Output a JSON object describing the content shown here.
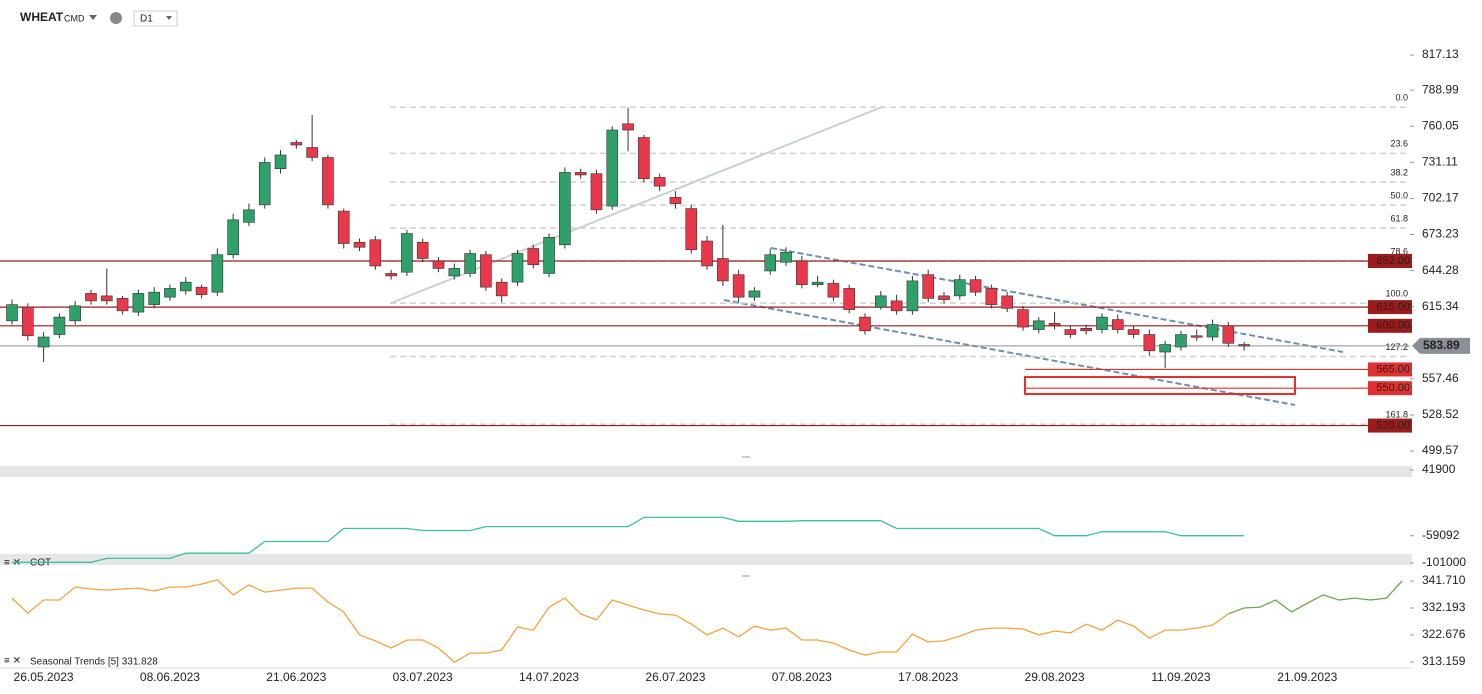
{
  "chart_data": [
    {
      "type": "candlestick",
      "title": "WHEAT",
      "subtitle": "CMD",
      "timeframe": "D1",
      "up_color": "#2ea06a",
      "down_color": "#e8394a",
      "categories": [
        null,
        null,
        "26.05.2023",
        null,
        null,
        null,
        null,
        null,
        null,
        null,
        "08.06.2023",
        null,
        null,
        null,
        null,
        null,
        null,
        null,
        "21.06.2023",
        null,
        null,
        null,
        null,
        null,
        null,
        null,
        "03.07.2023",
        null,
        null,
        null,
        null,
        null,
        null,
        null,
        "14.07.2023",
        null,
        null,
        null,
        null,
        null,
        null,
        null,
        "26.07.2023",
        null,
        null,
        null,
        null,
        null,
        null,
        null,
        "07.08.2023",
        null,
        null,
        null,
        null,
        null,
        null,
        null,
        "17.08.2023",
        null,
        null,
        null,
        null,
        null,
        null,
        null,
        "29.08.2023",
        null,
        null,
        null,
        null,
        null,
        null,
        null,
        "11.09.2023",
        null,
        null,
        null,
        null,
        null,
        null,
        null,
        "21.09.2023",
        null,
        null,
        null,
        null,
        null,
        null
      ],
      "open": [
        604,
        615,
        583,
        593,
        604,
        626,
        624,
        622,
        611,
        617,
        623,
        628,
        631,
        627,
        657,
        683,
        697,
        726,
        747,
        743,
        735,
        692,
        667,
        669,
        642,
        643,
        667,
        652,
        640,
        642,
        657,
        635,
        635,
        662,
        642,
        665,
        723,
        722,
        696,
        762,
        751,
        719,
        703,
        694,
        668,
        654,
        641,
        623,
        644,
        651,
        652,
        633,
        634,
        630,
        607,
        615,
        620,
        612,
        641,
        624,
        624,
        637,
        630,
        624,
        613,
        597,
        602,
        597,
        598,
        597,
        605,
        597,
        593,
        579,
        583,
        592,
        591,
        600,
        585,
        null,
        null,
        null,
        null,
        null,
        null,
        null,
        null,
        null,
        null
      ],
      "high": [
        621,
        618,
        595,
        610,
        620,
        629,
        646,
        624,
        629,
        631,
        633,
        639,
        633,
        662,
        690,
        698,
        735,
        741,
        749,
        769,
        737,
        694,
        670,
        672,
        645,
        677,
        670,
        655,
        650,
        661,
        660,
        638,
        661,
        665,
        674,
        727,
        726,
        725,
        760,
        775,
        753,
        722,
        708,
        697,
        672,
        681,
        645,
        631,
        662,
        663,
        656,
        640,
        637,
        633,
        610,
        628,
        625,
        640,
        645,
        627,
        641,
        640,
        633,
        627,
        616,
        607,
        611,
        600,
        601,
        610,
        609,
        600,
        597,
        588,
        596,
        597,
        605,
        603,
        587,
        null,
        null,
        null,
        null,
        null,
        null,
        null,
        null,
        null,
        null
      ],
      "low": [
        601,
        588,
        571,
        590,
        601,
        617,
        617,
        609,
        608,
        614,
        620,
        625,
        622,
        624,
        654,
        680,
        694,
        722,
        742,
        732,
        694,
        662,
        660,
        645,
        637,
        640,
        651,
        643,
        637,
        639,
        628,
        619,
        632,
        646,
        639,
        662,
        718,
        690,
        693,
        740,
        715,
        708,
        694,
        658,
        645,
        632,
        619,
        620,
        641,
        648,
        630,
        631,
        620,
        610,
        593,
        613,
        609,
        609,
        619,
        618,
        621,
        624,
        614,
        611,
        596,
        594,
        597,
        590,
        593,
        594,
        594,
        590,
        576,
        566,
        580,
        588,
        588,
        583,
        580,
        null,
        null,
        null,
        null,
        null,
        null,
        null,
        null,
        null,
        null
      ],
      "close": [
        617,
        592,
        591,
        607,
        616,
        620,
        620,
        612,
        626,
        627,
        630,
        635,
        625,
        657,
        685,
        693,
        731,
        737,
        745,
        735,
        697,
        666,
        663,
        648,
        640,
        674,
        654,
        646,
        646,
        658,
        631,
        624,
        658,
        649,
        671,
        723,
        721,
        693,
        757,
        757,
        718,
        712,
        698,
        661,
        648,
        636,
        623,
        628,
        657,
        659,
        633,
        635,
        623,
        613,
        596,
        624,
        612,
        636,
        622,
        621,
        637,
        627,
        617,
        614,
        599,
        604,
        600,
        593,
        596,
        607,
        597,
        593,
        580,
        585,
        593,
        591,
        601,
        586,
        583.89,
        null,
        null,
        null,
        null,
        null,
        null,
        null,
        null,
        null,
        null
      ],
      "ylim": [
        494,
        829.2
      ],
      "yticks": [
        817.13,
        788.99,
        760.05,
        731.11,
        702.17,
        673.23,
        644.28,
        615.34,
        557.46,
        528.52,
        499.57
      ],
      "levels": [
        {
          "value": 652,
          "label": "652.00",
          "color": "#9b1c1c"
        },
        {
          "value": 615,
          "label": "615.00",
          "color": "#9b1c1c"
        },
        {
          "value": 600,
          "label": "600.00",
          "color": "#9b1c1c"
        },
        {
          "value": 565,
          "label": "565.00",
          "color": "#e03030",
          "style": "zone"
        },
        {
          "value": 550,
          "label": "550.00",
          "color": "#e03030",
          "style": "zone"
        },
        {
          "value": 520,
          "label": "520.00",
          "color": "#9b1c1c"
        }
      ],
      "fib_levels": [
        {
          "label": "0.0",
          "value": 775.4
        },
        {
          "label": "23.6",
          "value": 738.3
        },
        {
          "label": "38.2",
          "value": 715.3
        },
        {
          "label": "50.0",
          "value": 696.8
        },
        {
          "label": "61.8",
          "value": 678.3
        },
        {
          "label": "78.6",
          "value": 651.8
        },
        {
          "label": "100.0",
          "value": 618.2
        },
        {
          "label": "127.2",
          "value": 575.4
        },
        {
          "label": "161.8",
          "value": 521.1
        }
      ],
      "last_price": 583.89,
      "last_color": "#8a8f96"
    },
    {
      "type": "line",
      "title": "COT",
      "series": [
        {
          "color": "#3cbfa0",
          "values": [
            -100000,
            -100000,
            -100000,
            -100000,
            -100000,
            -100000,
            -94000,
            -94000,
            -94000,
            -94000,
            -94000,
            -86000,
            -86000,
            -86000,
            -86000,
            -86000,
            -68000,
            -68000,
            -68000,
            -68000,
            -68000,
            -48000,
            -48000,
            -48000,
            -48000,
            -48000,
            -51000,
            -51000,
            -51000,
            -51000,
            -45000,
            -45000,
            -45000,
            -45000,
            -45000,
            -45000,
            -45000,
            -45000,
            -45000,
            -45000,
            -31000,
            -31000,
            -31000,
            -31000,
            -31000,
            -31000,
            -37000,
            -37000,
            -37000,
            -37000,
            -36000,
            -36000,
            -36000,
            -36000,
            -36000,
            -36000,
            -48000,
            -48000,
            -48000,
            -48000,
            -48000,
            -48000,
            -48000,
            -48000,
            -48000,
            -48000,
            -59000,
            -59000,
            -59000,
            -53000,
            -53000,
            -53000,
            -53000,
            -53000,
            -59000,
            -59000,
            -59000,
            -59000,
            -59000,
            null,
            null,
            null,
            null,
            null,
            null,
            null,
            null,
            null,
            null
          ]
        }
      ],
      "ylim": [
        -101000,
        41900
      ],
      "yticks": [
        41900,
        -59092,
        -101000
      ]
    },
    {
      "type": "line",
      "title": "Seasonal Trends [5] 331.828",
      "series": [
        {
          "color": "#f4a340",
          "values": [
            335.7,
            330.4,
            335.0,
            335.0,
            339.6,
            338.9,
            338.5,
            338.9,
            339.2,
            338.2,
            339.6,
            339.6,
            340.6,
            342.1,
            336.8,
            340.3,
            337.8,
            338.5,
            339.2,
            339.2,
            334.3,
            330.8,
            322.7,
            320.6,
            318.1,
            320.9,
            320.9,
            318.1,
            313.1,
            316.3,
            316.3,
            317.4,
            325.5,
            324.4,
            332.5,
            335.7,
            330.1,
            328.0,
            335.0,
            333.2,
            331.5,
            330.1,
            329.7,
            326.5,
            322.7,
            325.1,
            322.0,
            325.8,
            324.4,
            325.1,
            320.9,
            320.9,
            319.8,
            317.4,
            315.6,
            316.7,
            316.7,
            323.0,
            320.2,
            320.6,
            322.3,
            324.4,
            325.1,
            325.1,
            324.8,
            322.7,
            324.1,
            323.4,
            326.5,
            324.4,
            327.9,
            325.8,
            321.6,
            324.4,
            324.4,
            325.1,
            326.2,
            330.1,
            null,
            null,
            null,
            null,
            null,
            null,
            null,
            null,
            null,
            null,
            null
          ]
        },
        {
          "color": "#6aa84f",
          "values": [
            null,
            null,
            null,
            null,
            null,
            null,
            null,
            null,
            null,
            null,
            null,
            null,
            null,
            null,
            null,
            null,
            null,
            null,
            null,
            null,
            null,
            null,
            null,
            null,
            null,
            null,
            null,
            null,
            null,
            null,
            null,
            null,
            null,
            null,
            null,
            null,
            null,
            null,
            null,
            null,
            null,
            null,
            null,
            null,
            null,
            null,
            null,
            null,
            null,
            null,
            null,
            null,
            null,
            null,
            null,
            null,
            null,
            null,
            null,
            null,
            null,
            null,
            null,
            null,
            null,
            null,
            null,
            null,
            null,
            null,
            null,
            null,
            null,
            null,
            null,
            null,
            null,
            330.1,
            332.2,
            332.5,
            335.0,
            330.8,
            333.9,
            336.8,
            335.0,
            335.7,
            335.0,
            335.7,
            341.7
          ]
        }
      ],
      "ylim": [
        313.159,
        341.71
      ],
      "yticks": [
        {
          "value": 341.71,
          "label": "341.710"
        },
        {
          "value": 332.193,
          "label": "332.193"
        },
        {
          "value": 322.676,
          "label": "322.676"
        },
        {
          "value": 313.159,
          "label": "313.159"
        }
      ]
    }
  ]
}
